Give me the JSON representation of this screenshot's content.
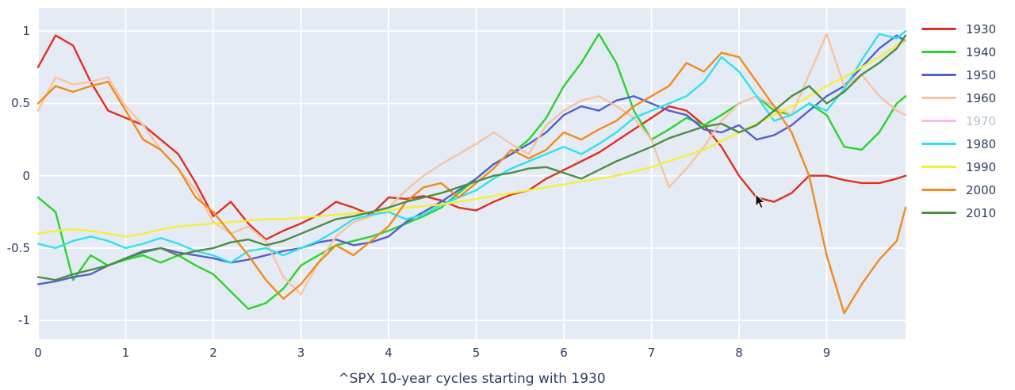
{
  "chart_data": {
    "type": "line",
    "title": "^SPX 10-year cycles starting with 1930",
    "xlabel": "",
    "ylabel": "",
    "xlim": [
      0,
      9.9
    ],
    "ylim": [
      -1.13,
      1.16
    ],
    "xticks": [
      0,
      1,
      2,
      3,
      4,
      5,
      6,
      7,
      8,
      9
    ],
    "yticks": [
      -1,
      -0.5,
      0,
      0.5,
      1
    ],
    "ytick_labels": [
      "-1",
      "-0.5",
      "0",
      "0.5",
      "1"
    ],
    "grid": true,
    "plot_bg": "#e4ebf5",
    "grid_color": "#ffffff",
    "legend_position": "right",
    "x_step": 0.2,
    "x_max": 9.9,
    "series": [
      {
        "name": "1930",
        "color": "#e1301e",
        "visible": true,
        "values": [
          0.75,
          0.97,
          0.9,
          0.65,
          0.45,
          0.4,
          0.35,
          0.25,
          0.15,
          -0.05,
          -0.28,
          -0.18,
          -0.33,
          -0.44,
          -0.38,
          -0.33,
          -0.27,
          -0.18,
          -0.22,
          -0.27,
          -0.15,
          -0.16,
          -0.14,
          -0.17,
          -0.22,
          -0.24,
          -0.18,
          -0.13,
          -0.1,
          -0.02,
          0.04,
          0.1,
          0.16,
          0.24,
          0.32,
          0.4,
          0.48,
          0.45,
          0.35,
          0.2,
          0.0,
          -0.15,
          -0.18,
          -0.12,
          0.0,
          0.0,
          -0.03,
          -0.05,
          -0.05,
          -0.02,
          0.0
        ]
      },
      {
        "name": "1940",
        "color": "#2bd42b",
        "visible": true,
        "values": [
          -0.15,
          -0.25,
          -0.72,
          -0.55,
          -0.62,
          -0.58,
          -0.55,
          -0.6,
          -0.55,
          -0.62,
          -0.68,
          -0.8,
          -0.92,
          -0.88,
          -0.78,
          -0.62,
          -0.55,
          -0.48,
          -0.45,
          -0.42,
          -0.38,
          -0.33,
          -0.28,
          -0.22,
          -0.12,
          -0.02,
          0.08,
          0.15,
          0.25,
          0.4,
          0.62,
          0.78,
          0.98,
          0.78,
          0.45,
          0.25,
          0.32,
          0.4,
          0.35,
          0.42,
          0.5,
          0.55,
          0.45,
          0.42,
          0.5,
          0.42,
          0.2,
          0.18,
          0.3,
          0.5,
          0.55
        ]
      },
      {
        "name": "1950",
        "color": "#5261cc",
        "visible": true,
        "values": [
          -0.75,
          -0.73,
          -0.7,
          -0.68,
          -0.62,
          -0.57,
          -0.52,
          -0.5,
          -0.53,
          -0.55,
          -0.57,
          -0.6,
          -0.58,
          -0.55,
          -0.52,
          -0.5,
          -0.46,
          -0.44,
          -0.48,
          -0.46,
          -0.42,
          -0.32,
          -0.25,
          -0.18,
          -0.1,
          -0.02,
          0.08,
          0.15,
          0.22,
          0.3,
          0.42,
          0.48,
          0.45,
          0.52,
          0.55,
          0.5,
          0.45,
          0.42,
          0.32,
          0.3,
          0.35,
          0.25,
          0.28,
          0.35,
          0.45,
          0.55,
          0.62,
          0.75,
          0.88,
          0.97,
          0.93
        ]
      },
      {
        "name": "1960",
        "color": "#f8c3a0",
        "visible": true,
        "values": [
          0.45,
          0.68,
          0.63,
          0.65,
          0.68,
          0.48,
          0.35,
          0.18,
          0.05,
          -0.1,
          -0.32,
          -0.4,
          -0.35,
          -0.45,
          -0.7,
          -0.82,
          -0.6,
          -0.42,
          -0.32,
          -0.28,
          -0.22,
          -0.1,
          0.0,
          0.08,
          0.15,
          0.22,
          0.3,
          0.22,
          0.15,
          0.35,
          0.45,
          0.52,
          0.55,
          0.48,
          0.4,
          0.25,
          -0.08,
          0.05,
          0.2,
          0.38,
          0.5,
          0.55,
          0.48,
          0.42,
          0.7,
          0.98,
          0.62,
          0.7,
          0.55,
          0.45,
          0.42
        ]
      },
      {
        "name": "1970",
        "color": "#f561d3",
        "visible": false,
        "values": []
      },
      {
        "name": "1980",
        "color": "#30e0ef",
        "visible": true,
        "values": [
          -0.47,
          -0.5,
          -0.45,
          -0.42,
          -0.45,
          -0.5,
          -0.47,
          -0.43,
          -0.47,
          -0.52,
          -0.55,
          -0.6,
          -0.52,
          -0.5,
          -0.55,
          -0.5,
          -0.45,
          -0.38,
          -0.3,
          -0.27,
          -0.25,
          -0.3,
          -0.27,
          -0.2,
          -0.15,
          -0.1,
          -0.02,
          0.05,
          0.1,
          0.15,
          0.2,
          0.15,
          0.22,
          0.3,
          0.4,
          0.45,
          0.5,
          0.55,
          0.65,
          0.82,
          0.72,
          0.55,
          0.38,
          0.42,
          0.5,
          0.45,
          0.6,
          0.8,
          0.98,
          0.95,
          1.0
        ]
      },
      {
        "name": "1990",
        "color": "#f4ef3c",
        "visible": true,
        "values": [
          -0.4,
          -0.38,
          -0.37,
          -0.38,
          -0.4,
          -0.42,
          -0.4,
          -0.37,
          -0.35,
          -0.34,
          -0.33,
          -0.32,
          -0.31,
          -0.3,
          -0.3,
          -0.29,
          -0.28,
          -0.27,
          -0.26,
          -0.25,
          -0.24,
          -0.22,
          -0.21,
          -0.2,
          -0.18,
          -0.16,
          -0.14,
          -0.12,
          -0.1,
          -0.08,
          -0.06,
          -0.04,
          -0.02,
          0.0,
          0.03,
          0.06,
          0.1,
          0.14,
          0.18,
          0.24,
          0.3,
          0.36,
          0.42,
          0.48,
          0.55,
          0.62,
          0.68,
          0.75,
          0.82,
          0.9,
          0.93
        ]
      },
      {
        "name": "2000",
        "color": "#f28b1e",
        "visible": true,
        "values": [
          0.5,
          0.62,
          0.58,
          0.62,
          0.65,
          0.45,
          0.25,
          0.18,
          0.05,
          -0.15,
          -0.25,
          -0.4,
          -0.55,
          -0.72,
          -0.85,
          -0.75,
          -0.6,
          -0.48,
          -0.55,
          -0.45,
          -0.35,
          -0.18,
          -0.08,
          -0.05,
          -0.15,
          -0.05,
          0.05,
          0.18,
          0.12,
          0.18,
          0.3,
          0.25,
          0.32,
          0.38,
          0.48,
          0.55,
          0.62,
          0.78,
          0.72,
          0.85,
          0.82,
          0.65,
          0.48,
          0.3,
          0.0,
          -0.55,
          -0.95,
          -0.75,
          -0.58,
          -0.45,
          -0.22
        ]
      },
      {
        "name": "2010",
        "color": "#4e8d44",
        "visible": true,
        "values": [
          -0.7,
          -0.72,
          -0.68,
          -0.65,
          -0.62,
          -0.57,
          -0.53,
          -0.5,
          -0.55,
          -0.52,
          -0.5,
          -0.46,
          -0.44,
          -0.48,
          -0.45,
          -0.4,
          -0.35,
          -0.3,
          -0.28,
          -0.25,
          -0.22,
          -0.18,
          -0.15,
          -0.12,
          -0.08,
          -0.04,
          0.0,
          0.02,
          0.05,
          0.06,
          0.02,
          -0.02,
          0.04,
          0.1,
          0.15,
          0.2,
          0.26,
          0.3,
          0.34,
          0.36,
          0.3,
          0.35,
          0.45,
          0.55,
          0.62,
          0.5,
          0.58,
          0.7,
          0.78,
          0.88,
          0.97
        ]
      }
    ]
  },
  "legend": {
    "text_color": "#2a3f5f",
    "muted_text_color": "#b6c0ce"
  }
}
